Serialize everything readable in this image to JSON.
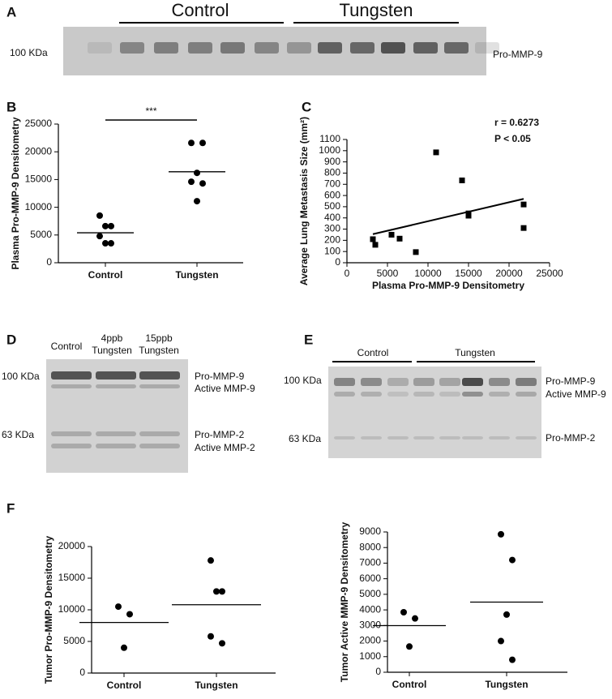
{
  "panel_labels": [
    "A",
    "B",
    "C",
    "D",
    "E",
    "F"
  ],
  "gel_a": {
    "groups": [
      "Control",
      "Tungsten"
    ],
    "marker": "100 KDa",
    "band": "Pro-MMP-9"
  },
  "gel_d": {
    "lanes": [
      [
        "Control"
      ],
      [
        "4ppb",
        "Tungsten"
      ],
      [
        "15ppb",
        "Tungsten"
      ]
    ],
    "markers": [
      "100 KDa",
      "63 KDa"
    ],
    "bands": [
      "Pro-MMP-9",
      "Active MMP-9",
      "Pro-MMP-2",
      "Active MMP-2"
    ]
  },
  "gel_e": {
    "groups": [
      "Control",
      "Tungsten"
    ],
    "markers": [
      "100 KDa",
      "63 KDa"
    ],
    "bands": [
      "Pro-MMP-9",
      "Active MMP-9",
      "Pro-MMP-2"
    ]
  },
  "chart_data": [
    {
      "type": "dot",
      "ylabel": "Plasma Pro-MMP-9 Densitometry",
      "categories": [
        "Control",
        "Tungsten"
      ],
      "values": [
        [
          8500,
          6600,
          6600,
          4800,
          3500,
          3500
        ],
        [
          21600,
          21600,
          16200,
          14600,
          14300,
          11100
        ]
      ],
      "means": [
        5400,
        16400
      ],
      "annotation": "***",
      "ylim": [
        0,
        25000
      ],
      "yticks": [
        0,
        5000,
        10000,
        15000,
        20000,
        25000
      ],
      "color": "#000000"
    },
    {
      "type": "scatter",
      "xlabel": "Plasma Pro-MMP-9 Densitometry",
      "ylabel": "Average Lung Metastasis Size (mm²)",
      "x": [
        3200,
        3500,
        5500,
        6500,
        8500,
        11000,
        14200,
        15000,
        15000,
        21800,
        21800
      ],
      "y": [
        210,
        160,
        250,
        215,
        95,
        985,
        735,
        440,
        420,
        520,
        310
      ],
      "fit": {
        "x": [
          3200,
          21800
        ],
        "y": [
          255,
          570
        ]
      },
      "annotations": [
        "r = 0.6273",
        "P < 0.05"
      ],
      "xlim": [
        0,
        25000
      ],
      "xticks": [
        0,
        5000,
        10000,
        15000,
        20000,
        25000
      ],
      "ylim": [
        0,
        1100
      ],
      "yticks": [
        0,
        100,
        200,
        300,
        400,
        500,
        600,
        700,
        800,
        900,
        1000,
        1100
      ],
      "color": "#000000"
    },
    {
      "type": "dot",
      "ylabel": "Tumor Pro-MMP-9 Densitometry",
      "categories": [
        "Control",
        "Tungsten"
      ],
      "values": [
        [
          10500,
          9300,
          4000
        ],
        [
          17800,
          12900,
          12900,
          5800,
          4700
        ]
      ],
      "means": [
        8000,
        10800
      ],
      "ylim": [
        0,
        20000
      ],
      "yticks": [
        0,
        5000,
        10000,
        15000,
        20000
      ],
      "color": "#000000"
    },
    {
      "type": "dot",
      "ylabel": "Tumor Active MMP-9 Densitometry",
      "categories": [
        "Control",
        "Tungsten"
      ],
      "values": [
        [
          3850,
          3450,
          1650
        ],
        [
          8850,
          7200,
          3700,
          2000,
          800
        ]
      ],
      "means": [
        2990,
        4500
      ],
      "ylim": [
        0,
        9000
      ],
      "yticks": [
        0,
        1000,
        2000,
        3000,
        4000,
        5000,
        6000,
        7000,
        8000,
        9000
      ],
      "color": "#000000"
    }
  ]
}
